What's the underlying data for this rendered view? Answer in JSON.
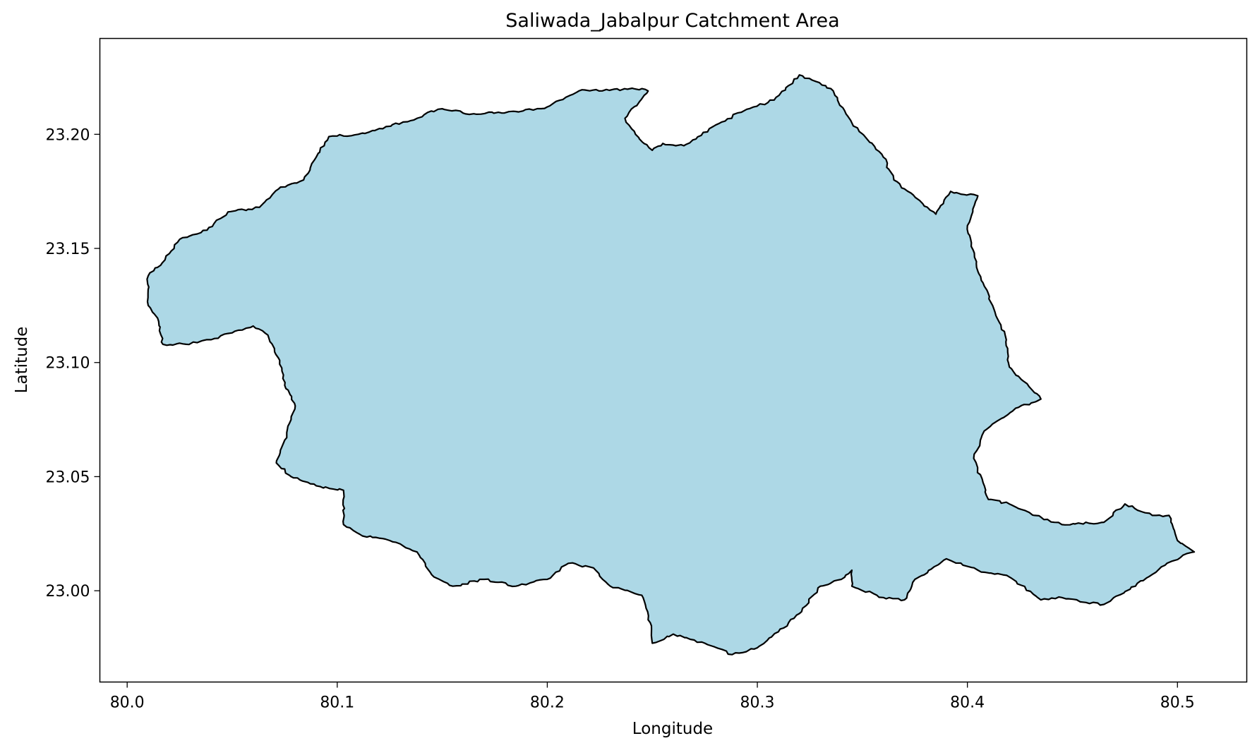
{
  "chart_data": {
    "type": "map",
    "title": "Saliwada_Jabalpur Catchment Area",
    "xlabel": "Longitude",
    "ylabel": "Latitude",
    "xlim": [
      79.987,
      80.533
    ],
    "ylim": [
      22.96,
      23.242
    ],
    "xticks": [
      80.0,
      80.1,
      80.2,
      80.3,
      80.4,
      80.5
    ],
    "xtick_labels": [
      "80.0",
      "80.1",
      "80.2",
      "80.3",
      "80.4",
      "80.5"
    ],
    "yticks": [
      23.0,
      23.05,
      23.1,
      23.15,
      23.2
    ],
    "ytick_labels": [
      "23.00",
      "23.05",
      "23.10",
      "23.15",
      "23.20"
    ],
    "grid": false,
    "legend": null,
    "fill_color": "#ADD8E6",
    "edge_color": "#000000",
    "series": [
      {
        "boundary": [
          [
            80.245,
            23.22
          ],
          [
            80.215,
            23.219
          ],
          [
            80.2,
            23.212
          ],
          [
            80.185,
            23.21
          ],
          [
            80.165,
            23.209
          ],
          [
            80.148,
            23.211
          ],
          [
            80.135,
            23.206
          ],
          [
            80.11,
            23.2
          ],
          [
            80.096,
            23.199
          ],
          [
            80.09,
            23.19
          ],
          [
            80.084,
            23.18
          ],
          [
            80.072,
            23.176
          ],
          [
            80.063,
            23.168
          ],
          [
            80.048,
            23.166
          ],
          [
            80.038,
            23.158
          ],
          [
            80.025,
            23.154
          ],
          [
            80.018,
            23.145
          ],
          [
            80.01,
            23.138
          ],
          [
            80.01,
            23.125
          ],
          [
            80.015,
            23.118
          ],
          [
            80.017,
            23.108
          ],
          [
            80.028,
            23.108
          ],
          [
            80.04,
            23.11
          ],
          [
            80.05,
            23.113
          ],
          [
            80.06,
            23.116
          ],
          [
            80.067,
            23.112
          ],
          [
            80.072,
            23.102
          ],
          [
            80.075,
            23.09
          ],
          [
            80.08,
            23.081
          ],
          [
            80.075,
            23.066
          ],
          [
            80.071,
            23.056
          ],
          [
            80.078,
            23.05
          ],
          [
            80.09,
            23.046
          ],
          [
            80.103,
            23.044
          ],
          [
            80.103,
            23.029
          ],
          [
            80.112,
            23.024
          ],
          [
            80.125,
            23.022
          ],
          [
            80.138,
            23.017
          ],
          [
            80.145,
            23.007
          ],
          [
            80.155,
            23.002
          ],
          [
            80.17,
            23.005
          ],
          [
            80.185,
            23.002
          ],
          [
            80.2,
            23.005
          ],
          [
            80.21,
            23.012
          ],
          [
            80.222,
            23.01
          ],
          [
            80.23,
            23.002
          ],
          [
            80.245,
            22.998
          ],
          [
            80.249,
            22.986
          ],
          [
            80.25,
            22.977
          ],
          [
            80.26,
            22.981
          ],
          [
            80.275,
            22.977
          ],
          [
            80.288,
            22.972
          ],
          [
            80.3,
            22.975
          ],
          [
            80.31,
            22.982
          ],
          [
            80.32,
            22.99
          ],
          [
            80.33,
            23.002
          ],
          [
            80.34,
            23.005
          ],
          [
            80.345,
            23.009
          ],
          [
            80.345,
            23.002
          ],
          [
            80.36,
            22.997
          ],
          [
            80.37,
            22.996
          ],
          [
            80.375,
            23.005
          ],
          [
            80.39,
            23.014
          ],
          [
            80.405,
            23.009
          ],
          [
            80.42,
            23.006
          ],
          [
            80.435,
            22.996
          ],
          [
            80.445,
            22.997
          ],
          [
            80.455,
            22.995
          ],
          [
            80.465,
            22.994
          ],
          [
            80.48,
            23.002
          ],
          [
            80.495,
            23.012
          ],
          [
            80.508,
            23.017
          ],
          [
            80.5,
            23.022
          ],
          [
            80.496,
            23.033
          ],
          [
            80.488,
            23.033
          ],
          [
            80.475,
            23.038
          ],
          [
            80.465,
            23.03
          ],
          [
            80.445,
            23.029
          ],
          [
            80.432,
            23.033
          ],
          [
            80.42,
            23.038
          ],
          [
            80.41,
            23.04
          ],
          [
            80.403,
            23.058
          ],
          [
            80.408,
            23.07
          ],
          [
            80.423,
            23.08
          ],
          [
            80.435,
            23.084
          ],
          [
            80.42,
            23.098
          ],
          [
            80.418,
            23.112
          ],
          [
            80.412,
            23.125
          ],
          [
            80.405,
            23.14
          ],
          [
            80.4,
            23.16
          ],
          [
            80.405,
            23.173
          ],
          [
            80.392,
            23.175
          ],
          [
            80.385,
            23.165
          ],
          [
            80.365,
            23.18
          ],
          [
            80.36,
            23.19
          ],
          [
            80.345,
            23.205
          ],
          [
            80.335,
            23.22
          ],
          [
            80.32,
            23.226
          ],
          [
            80.308,
            23.215
          ],
          [
            80.295,
            23.211
          ],
          [
            80.28,
            23.204
          ],
          [
            80.265,
            23.195
          ],
          [
            80.255,
            23.196
          ],
          [
            80.25,
            23.193
          ],
          [
            80.242,
            23.2
          ],
          [
            80.237,
            23.207
          ],
          [
            80.248,
            23.219
          ]
        ]
      }
    ]
  }
}
